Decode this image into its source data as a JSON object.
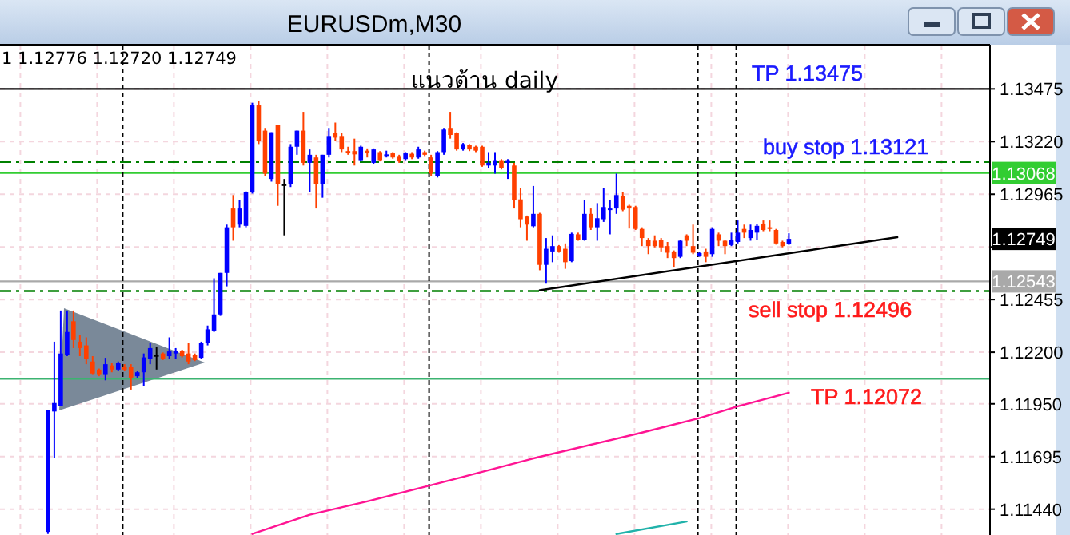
{
  "chart_data": {
    "type": "candlestick",
    "title": "EURUSDm,M30",
    "categories": [
      null,
      null,
      null,
      null,
      null,
      null,
      null,
      null,
      null,
      null,
      null,
      null,
      null,
      null,
      null,
      null,
      null,
      null,
      null,
      null,
      null,
      null,
      null,
      null,
      null,
      null,
      null,
      null,
      null,
      null,
      null,
      null,
      null,
      null,
      null,
      null,
      null,
      null,
      null,
      null,
      null,
      null,
      null,
      null,
      null,
      null,
      null,
      null,
      null,
      null,
      null,
      null,
      null,
      null,
      null,
      null,
      null,
      null,
      null,
      null,
      null,
      null,
      null,
      null,
      null,
      null,
      null,
      null,
      null,
      null,
      null,
      null,
      null,
      null,
      null,
      null,
      null,
      null,
      null,
      null,
      null,
      null,
      null,
      null,
      null,
      null,
      null,
      null,
      null,
      null,
      null,
      null,
      null,
      null,
      null,
      null,
      null,
      null,
      null,
      null,
      null,
      null,
      null,
      null,
      null,
      null,
      null,
      null,
      null,
      null,
      null,
      null,
      null,
      null,
      null,
      null,
      null,
      null,
      null,
      null,
      null,
      null,
      null,
      null,
      null,
      null,
      null,
      null,
      null,
      null,
      null,
      null,
      null,
      null,
      null,
      null,
      null,
      null,
      null,
      null,
      null,
      null,
      null,
      null,
      null,
      null,
      null,
      null,
      null,
      null,
      null,
      null,
      null,
      null,
      null
    ],
    "ohlc": [
      null,
      null,
      null,
      null,
      null,
      null,
      null,
      [
        1.1133,
        1.11921,
        1.1132,
        1.11921
      ],
      [
        1.11913,
        1.12251,
        1.11687,
        1.11954
      ],
      [
        1.11939,
        1.12402,
        1.11939,
        1.12194
      ],
      [
        1.12188,
        1.12402,
        1.12181,
        1.12298
      ],
      [
        1.1235,
        1.12402,
        1.1222,
        1.12259
      ],
      [
        1.12251,
        1.12285,
        1.12181,
        1.1222
      ],
      [
        1.12233,
        1.12272,
        1.12142,
        1.12168
      ],
      [
        1.12155,
        1.12181,
        1.1209,
        1.12097
      ],
      [
        1.12116,
        1.12121,
        1.12084,
        1.1209
      ],
      [
        1.1209,
        1.12173,
        1.12064,
        1.12142
      ],
      [
        1.12136,
        1.12147,
        1.12103,
        1.12116
      ],
      [
        1.12116,
        1.12155,
        1.12108,
        1.12147
      ],
      [
        1.12131,
        1.12142,
        1.1211,
        1.12116
      ],
      [
        1.12129,
        1.12142,
        1.12019,
        1.12077
      ],
      [
        1.12084,
        1.1211,
        1.12077,
        1.12103
      ],
      [
        1.12103,
        1.12194,
        1.12038,
        1.12175
      ],
      [
        1.12168,
        1.12246,
        1.12142,
        1.1222
      ],
      [
        1.12186,
        1.12225,
        1.12116,
        1.12186
      ],
      [
        1.12194,
        1.12199,
        1.12162,
        1.12168
      ],
      [
        1.12181,
        1.12272,
        1.12168,
        1.12204
      ],
      [
        1.12194,
        1.1222,
        1.12168,
        1.12207
      ],
      [
        1.12207,
        1.12212,
        1.12175,
        1.12181
      ],
      [
        1.12194,
        1.12246,
        1.12142,
        1.12155
      ],
      [
        1.12188,
        1.12194,
        1.12157,
        1.12162
      ],
      [
        1.12173,
        1.12251,
        1.12168,
        1.12246
      ],
      [
        1.12246,
        1.12329,
        1.12233,
        1.12311
      ],
      [
        1.12305,
        1.12558,
        1.12298,
        1.12383
      ],
      [
        1.12383,
        1.12584,
        1.12376,
        1.12584
      ],
      [
        1.12584,
        1.12818,
        1.12519,
        1.12805
      ],
      [
        1.12896,
        1.12961,
        1.1274,
        1.12805
      ],
      [
        1.12818,
        1.12935,
        1.12805,
        1.12896
      ],
      [
        1.12812,
        1.12979,
        1.12805,
        1.12974
      ],
      [
        1.12974,
        1.13408,
        1.12968,
        1.13395
      ],
      [
        1.13395,
        1.13416,
        1.13208,
        1.13221
      ],
      [
        1.13273,
        1.13286,
        1.13052,
        1.13065
      ],
      [
        1.13039,
        1.13265,
        1.13026,
        1.13265
      ],
      [
        1.13299,
        1.13299,
        1.12909,
        1.13013
      ],
      [
        1.13013,
        1.13039,
        1.12766,
        1.13013
      ],
      [
        1.13013,
        1.13208,
        1.13,
        1.13195
      ],
      [
        1.13195,
        1.13273,
        1.13156,
        1.13273
      ],
      [
        1.13273,
        1.13364,
        1.13104,
        1.13117
      ],
      [
        1.13117,
        1.13182,
        1.12974,
        1.13156
      ],
      [
        1.13143,
        1.13156,
        1.12896,
        1.13013
      ],
      [
        1.13013,
        1.13156,
        1.12948,
        1.13156
      ],
      [
        1.13156,
        1.13286,
        1.13143,
        1.13247
      ],
      [
        1.1326,
        1.13312,
        1.13221,
        1.13239
      ],
      [
        1.13247,
        1.1326,
        1.13169,
        1.13182
      ],
      [
        1.13174,
        1.13195,
        1.13156,
        1.13163
      ],
      [
        1.13174,
        1.13234,
        1.13104,
        1.13158
      ],
      [
        1.1313,
        1.132,
        1.13124,
        1.13195
      ],
      [
        1.13176,
        1.13187,
        1.13143,
        1.13163
      ],
      [
        1.13117,
        1.13187,
        1.13111,
        1.13182
      ],
      [
        1.13169,
        1.13174,
        1.13124,
        1.1313
      ],
      [
        1.13153,
        1.13176,
        1.13143,
        1.13158
      ],
      [
        1.13163,
        1.13169,
        1.13137,
        1.13143
      ],
      [
        1.1315,
        1.13156,
        1.13117,
        1.13124
      ],
      [
        1.13135,
        1.13169,
        1.1313,
        1.13163
      ],
      [
        1.13161,
        1.13169,
        1.13135,
        1.13143
      ],
      [
        1.13143,
        1.13195,
        1.13137,
        1.13182
      ],
      [
        1.13169,
        1.13176,
        1.1315,
        1.13156
      ],
      [
        1.13143,
        1.13156,
        1.13052,
        1.13065
      ],
      [
        1.13052,
        1.13174,
        1.13046,
        1.13169
      ],
      [
        1.13169,
        1.13286,
        1.13156,
        1.13278
      ],
      [
        1.13286,
        1.13364,
        1.13234,
        1.13252
      ],
      [
        1.1326,
        1.13265,
        1.13176,
        1.13182
      ],
      [
        1.13182,
        1.13213,
        1.13176,
        1.13208
      ],
      [
        1.13202,
        1.13208,
        1.13174,
        1.13182
      ],
      [
        1.13195,
        1.132,
        1.13169,
        1.13176
      ],
      [
        1.13195,
        1.132,
        1.13098,
        1.13104
      ],
      [
        1.13104,
        1.13169,
        1.13091,
        1.13117
      ],
      [
        1.13104,
        1.13169,
        1.13065,
        1.1313
      ],
      [
        1.1313,
        1.13135,
        1.13085,
        1.13091
      ],
      [
        1.13117,
        1.13135,
        1.13039,
        1.1313
      ],
      [
        1.13104,
        1.13117,
        1.12896,
        1.12935
      ],
      [
        1.1294,
        1.12994,
        1.12805,
        1.12844
      ],
      [
        1.12857,
        1.12862,
        1.1274,
        1.12818
      ],
      [
        1.1281,
        1.13005,
        1.12805,
        1.1287
      ],
      [
        1.1287,
        1.12875,
        1.12597,
        1.12623
      ],
      [
        1.12623,
        1.12753,
        1.12532,
        1.12701
      ],
      [
        1.12688,
        1.12766,
        1.12636,
        1.12714
      ],
      [
        1.12714,
        1.12719,
        1.12682,
        1.12688
      ],
      [
        1.12701,
        1.12727,
        1.12604,
        1.12636
      ],
      [
        1.12641,
        1.12779,
        1.12636,
        1.12773
      ],
      [
        1.12771,
        1.12779,
        1.1274,
        1.12745
      ],
      [
        1.12745,
        1.12935,
        1.1274,
        1.1287
      ],
      [
        1.1287,
        1.12896,
        1.12792,
        1.12805
      ],
      [
        1.12805,
        1.12922,
        1.1274,
        1.12849
      ],
      [
        1.12844,
        1.12994,
        1.12831,
        1.12903
      ],
      [
        1.1289,
        1.12935,
        1.12771,
        1.12896
      ],
      [
        1.12896,
        1.13065,
        1.1287,
        1.12961
      ],
      [
        1.12955,
        1.12974,
        1.12883,
        1.1289
      ],
      [
        1.12909,
        1.12914,
        1.12799,
        1.12896
      ],
      [
        1.12903,
        1.12909,
        1.12792,
        1.12797
      ],
      [
        1.12797,
        1.12805,
        1.12714,
        1.12753
      ],
      [
        1.12745,
        1.12753,
        1.12675,
        1.12714
      ],
      [
        1.1274,
        1.12766,
        1.12708,
        1.12714
      ],
      [
        1.12745,
        1.12753,
        1.12688,
        1.12708
      ],
      [
        1.12714,
        1.12734,
        1.12656,
        1.12682
      ],
      [
        1.12688,
        1.12693,
        1.1261,
        1.12656
      ],
      [
        1.12662,
        1.12745,
        1.12656,
        1.1274
      ],
      [
        1.12766,
        1.12771,
        1.12714,
        1.1274
      ],
      [
        1.12714,
        1.12818,
        1.12675,
        1.12682
      ],
      [
        1.12667,
        1.12685,
        1.12662,
        1.1268
      ],
      [
        1.12688,
        1.12701,
        1.12636,
        1.12662
      ],
      [
        1.12675,
        1.12805,
        1.12662,
        1.12797
      ],
      [
        1.12771,
        1.12779,
        1.12714,
        1.1274
      ],
      [
        1.1274,
        1.12745,
        1.12675,
        1.12714
      ],
      [
        1.12719,
        1.12779,
        1.12714,
        1.12745
      ],
      [
        1.12734,
        1.12838,
        1.12727,
        1.12779
      ],
      [
        1.12797,
        1.12818,
        1.12753,
        1.12779
      ],
      [
        1.12753,
        1.12818,
        1.1274,
        1.12792
      ],
      [
        1.12779,
        1.12823,
        1.12745,
        1.12812
      ],
      [
        1.12823,
        1.12838,
        1.12786,
        1.12792
      ],
      [
        1.12805,
        1.12838,
        1.12786,
        1.12797
      ],
      [
        1.12792,
        1.12797,
        1.12721,
        1.12727
      ],
      [
        1.12734,
        1.1274,
        1.12708,
        1.12714
      ],
      [
        1.12725,
        1.12776,
        1.1272,
        1.12749
      ],
      null,
      null,
      null,
      null,
      null,
      null,
      null,
      null,
      null,
      null,
      null,
      null,
      null,
      null,
      null,
      null,
      null,
      null,
      null,
      null,
      null,
      null,
      null,
      null,
      null,
      null,
      null,
      null,
      null,
      null,
      null
    ],
    "colors": [
      null,
      null,
      null,
      null,
      null,
      null,
      null,
      "#0000ff",
      "#0000ff",
      "#0000ff",
      "#0000ff",
      "#ff4000",
      "#ff4000",
      "#ff4000",
      "#ff4000",
      "#ff4000",
      "#0000ff",
      "#ff4000",
      "#0000ff",
      "#ff4000",
      "#ff4000",
      "#0000ff",
      "#0000ff",
      "#0000ff",
      "#000000",
      "#ff4000",
      "#0000ff",
      "#0000ff",
      "#ff4000",
      "#ff4000",
      "#ff4000",
      "#0000ff",
      "#0000ff",
      "#0000ff",
      "#0000ff",
      "#0000ff",
      "#ff4000",
      "#0000ff",
      "#0000ff",
      "#0000ff",
      "#ff4000",
      "#ff4000",
      "#0000ff",
      "#ff4000",
      "#000000",
      "#0000ff",
      "#0000ff",
      "#ff4000",
      "#0000ff",
      "#ff4000",
      "#0000ff",
      "#0000ff",
      "#ff4000",
      "#ff4000",
      "#ff4000",
      "#ff4000",
      "#0000ff",
      "#ff4000",
      "#0000ff",
      "#ff4000",
      "#0000ff",
      "#ff4000",
      "#ff4000",
      "#0000ff",
      "#ff4000",
      "#0000ff",
      "#ff4000",
      "#ff4000",
      "#0000ff",
      "#0000ff",
      "#ff4000",
      "#ff4000",
      "#0000ff",
      "#ff4000",
      "#ff4000",
      "#ff4000",
      "#0000ff",
      "#0000ff",
      "#ff4000",
      "#0000ff",
      "#ff4000",
      "#ff4000",
      "#ff4000",
      "#0000ff",
      "#ff4000",
      "#0000ff",
      "#0000ff",
      "#ff4000",
      "#ff4000",
      "#0000ff",
      "#ff4000",
      "#0000ff",
      "#ff4000",
      "#0000ff",
      "#0000ff",
      "#0000ff",
      "#0000ff",
      "#ff4000",
      "#ff4000",
      "#ff4000",
      "#ff4000",
      "#ff4000",
      "#ff4000",
      "#ff4000",
      "#ff4000",
      "#ff4000",
      "#0000ff",
      "#ff4000",
      "#ff4000",
      "#0000ff",
      "#ff4000",
      "#0000ff",
      "#ff4000",
      "#ff4000",
      "#0000ff",
      "#0000ff",
      "#ff4000",
      "#0000ff",
      "#0000ff",
      "#ff4000",
      "#ff4000",
      "#ff4000",
      "#ff4000",
      "#0000ff",
      null,
      null,
      null,
      null,
      null,
      null,
      null,
      null,
      null,
      null,
      null,
      null,
      null,
      null,
      null,
      null,
      null,
      null,
      null,
      null,
      null,
      null,
      null,
      null,
      null,
      null,
      null,
      null,
      null,
      null,
      null
    ],
    "series": [
      {
        "type": "line",
        "color": "#ff1493",
        "values": [
          null,
          null,
          null,
          null,
          null,
          null,
          null,
          null,
          null,
          null,
          null,
          null,
          null,
          null,
          null,
          null,
          null,
          null,
          null,
          null,
          null,
          null,
          null,
          null,
          null,
          null,
          null,
          null,
          null,
          null,
          null,
          null,
          null,
          null,
          null,
          null,
          null,
          null,
          null,
          1.1132,
          null,
          null,
          null,
          null,
          null,
          null,
          null,
          null,
          1.11413,
          null,
          null,
          null,
          null,
          null,
          null,
          null,
          null,
          1.11478,
          null,
          null,
          null,
          null,
          null,
          null,
          null,
          null,
          null,
          1.11556,
          null,
          null,
          null,
          null,
          null,
          null,
          null,
          null,
          null,
          null,
          null,
          null,
          null,
          null,
          null,
          1.11686,
          null,
          null,
          null,
          null,
          null,
          null,
          null,
          null,
          null,
          null,
          null,
          null,
          null,
          null,
          null,
          null,
          1.11811,
          null,
          null,
          null,
          null,
          null,
          null,
          null,
          null,
          1.11881,
          null,
          null,
          null,
          null,
          null,
          1.11938,
          null,
          null,
          null,
          null,
          null,
          null,
          null,
          1.12004,
          null,
          null,
          null,
          null,
          null,
          null,
          null,
          null,
          null,
          null,
          null,
          null,
          null,
          null,
          null,
          null,
          null,
          null,
          null,
          null,
          null,
          null,
          null,
          null,
          null,
          null,
          null,
          null,
          null,
          null,
          null
        ]
      },
      {
        "type": "line",
        "color": "#20b2aa",
        "values": [
          null,
          null,
          null,
          null,
          null,
          null,
          null,
          null,
          null,
          null,
          null,
          null,
          null,
          null,
          null,
          null,
          null,
          null,
          null,
          null,
          null,
          null,
          null,
          null,
          null,
          null,
          null,
          null,
          null,
          null,
          null,
          null,
          null,
          null,
          null,
          null,
          null,
          null,
          null,
          null,
          null,
          null,
          null,
          null,
          null,
          null,
          null,
          null,
          null,
          null,
          null,
          null,
          null,
          null,
          null,
          null,
          null,
          null,
          null,
          null,
          null,
          null,
          null,
          null,
          null,
          null,
          null,
          null,
          null,
          null,
          null,
          null,
          null,
          null,
          null,
          null,
          null,
          null,
          null,
          null,
          null,
          null,
          null,
          null,
          null,
          null,
          null,
          null,
          null,
          null,
          null,
          null,
          null,
          null,
          null,
          null,
          1.1132,
          null,
          null,
          null,
          null,
          null,
          null,
          null,
          null,
          null,
          null,
          1.1138,
          null,
          null,
          null,
          null,
          null,
          null,
          null,
          null,
          null,
          null,
          null,
          null,
          null,
          null,
          null,
          null,
          null,
          null,
          null,
          null,
          null,
          null,
          null,
          null,
          null,
          null,
          null,
          null,
          null,
          null,
          null,
          null,
          null,
          null,
          null,
          null,
          null,
          null,
          null,
          null,
          null,
          null,
          null,
          null,
          null,
          null,
          null
        ]
      },
      {
        "type": "line",
        "color": "#000000",
        "values": [
          null,
          null,
          null,
          null,
          null,
          null,
          null,
          null,
          null,
          null,
          null,
          null,
          null,
          null,
          null,
          null,
          null,
          null,
          null,
          null,
          null,
          null,
          null,
          null,
          null,
          null,
          null,
          null,
          null,
          null,
          null,
          null,
          null,
          null,
          null,
          null,
          null,
          null,
          null,
          null,
          null,
          null,
          null,
          null,
          null,
          null,
          null,
          null,
          null,
          null,
          null,
          null,
          null,
          null,
          null,
          null,
          null,
          null,
          null,
          null,
          null,
          null,
          null,
          null,
          null,
          null,
          null,
          null,
          null,
          null,
          null,
          null,
          null,
          null,
          null,
          null,
          null,
          null,
          null,
          null,
          null,
          null,
          null,
          null,
          1.125,
          null,
          null,
          null,
          null,
          null,
          null,
          null,
          null,
          null,
          null,
          null,
          null,
          null,
          null,
          null,
          null,
          null,
          null,
          null,
          null,
          null,
          null,
          null,
          null,
          null,
          null,
          null,
          null,
          null,
          null,
          null,
          null,
          null,
          null,
          null,
          null,
          null,
          null,
          null,
          null,
          null,
          null,
          null,
          null,
          null,
          null,
          null,
          null,
          null,
          null,
          null,
          null,
          null,
          null,
          null,
          1.12757,
          null,
          null,
          null,
          null,
          null,
          null,
          null,
          null,
          null,
          null,
          null,
          null,
          null,
          null
        ]
      }
    ],
    "ylim": [
      1.11315,
      1.13689
    ],
    "yticks": [
      1.13475,
      {
        "value": 1.1322,
        "label": "1.13220"
      },
      1.12965,
      {
        "value": 1.1271,
        "label": null
      },
      1.12455,
      {
        "value": 1.122,
        "label": "1.12200"
      },
      {
        "value": 1.1195,
        "label": "1.11950"
      },
      1.11695,
      {
        "value": 1.1144,
        "label": "1.11440"
      }
    ],
    "tick_labels": "y",
    "grid": true,
    "ref_lines": [
      {
        "axis": "y",
        "value": 1.13475,
        "label": "TP 1.13475",
        "color": "#000000"
      },
      {
        "axis": "y",
        "value": 1.13121,
        "label": "buy stop 1.13121",
        "color": "#008000",
        "line_style": "dashed"
      },
      {
        "axis": "y",
        "value": 1.13068,
        "label": "1.13068",
        "color": "#32cd32"
      },
      {
        "axis": "y",
        "value": 1.12543,
        "label": "1.12543",
        "color": "#a9a9a9"
      },
      {
        "axis": "y",
        "value": 1.12496,
        "label": "sell stop 1.12496",
        "color": "#008000",
        "line_style": "dashed"
      },
      {
        "axis": "y",
        "value": 1.12072,
        "label": "TP 1.12072",
        "color": "#3cb371"
      }
    ],
    "annotations": [
      "1 1.12776 1.12720 1.12749",
      "แนวต้าน daily",
      {
        "text": "1.12749",
        "y": 1.12749
      }
    ]
  }
}
